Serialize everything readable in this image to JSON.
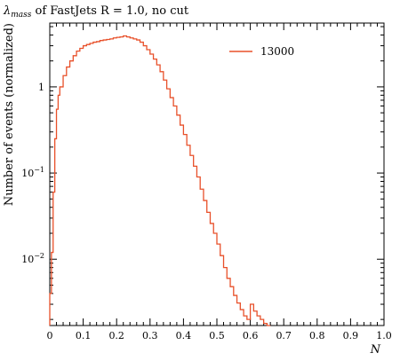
{
  "chart_data": {
    "type": "line",
    "title_symbol": "λ",
    "title_subscript": "mass",
    "title_rest": " of FastJets R = 1.0, no cut",
    "xlabel": "N",
    "ylabel": "Number of events (normalized)",
    "xlim": [
      0,
      1.0
    ],
    "ylim": [
      0.0017,
      5.5
    ],
    "yscale": "log",
    "xticks": [
      "0",
      "0.1",
      "0.2",
      "0.3",
      "0.4",
      "0.5",
      "0.6",
      "0.7",
      "0.8",
      "0.9",
      "1.0"
    ],
    "yticks": [
      {
        "base": "10",
        "exp": "−2",
        "value": 0.01
      },
      {
        "base": "10",
        "exp": "−1",
        "value": 0.1
      },
      {
        "base": "1",
        "exp": "",
        "value": 1
      }
    ],
    "legend_position": "top-right",
    "series": [
      {
        "name": "13000",
        "color": "#e8502a",
        "drawstyle": "steps",
        "x": [
          0.0,
          0.005,
          0.01,
          0.015,
          0.02,
          0.025,
          0.03,
          0.04,
          0.05,
          0.06,
          0.07,
          0.08,
          0.09,
          0.1,
          0.11,
          0.12,
          0.13,
          0.14,
          0.15,
          0.16,
          0.17,
          0.18,
          0.19,
          0.2,
          0.21,
          0.22,
          0.23,
          0.24,
          0.25,
          0.26,
          0.27,
          0.28,
          0.29,
          0.3,
          0.31,
          0.32,
          0.33,
          0.34,
          0.35,
          0.36,
          0.37,
          0.38,
          0.39,
          0.4,
          0.41,
          0.42,
          0.43,
          0.44,
          0.45,
          0.46,
          0.47,
          0.48,
          0.49,
          0.5,
          0.51,
          0.52,
          0.53,
          0.54,
          0.55,
          0.56,
          0.57,
          0.58,
          0.59,
          0.6,
          0.61,
          0.62,
          0.63,
          0.64,
          0.65
        ],
        "y": [
          0.004,
          0.012,
          0.06,
          0.25,
          0.55,
          0.8,
          1.0,
          1.35,
          1.7,
          2.0,
          2.3,
          2.6,
          2.8,
          3.0,
          3.1,
          3.2,
          3.3,
          3.35,
          3.45,
          3.5,
          3.55,
          3.6,
          3.7,
          3.75,
          3.8,
          3.9,
          3.8,
          3.7,
          3.6,
          3.5,
          3.3,
          3.0,
          2.7,
          2.4,
          2.1,
          1.8,
          1.5,
          1.2,
          0.95,
          0.75,
          0.6,
          0.47,
          0.36,
          0.28,
          0.21,
          0.16,
          0.12,
          0.09,
          0.065,
          0.048,
          0.035,
          0.026,
          0.02,
          0.015,
          0.011,
          0.008,
          0.006,
          0.0048,
          0.0038,
          0.0031,
          0.0026,
          0.0022,
          0.002,
          0.003,
          0.0025,
          0.0022,
          0.002,
          0.0018,
          0.0017
        ]
      }
    ]
  }
}
